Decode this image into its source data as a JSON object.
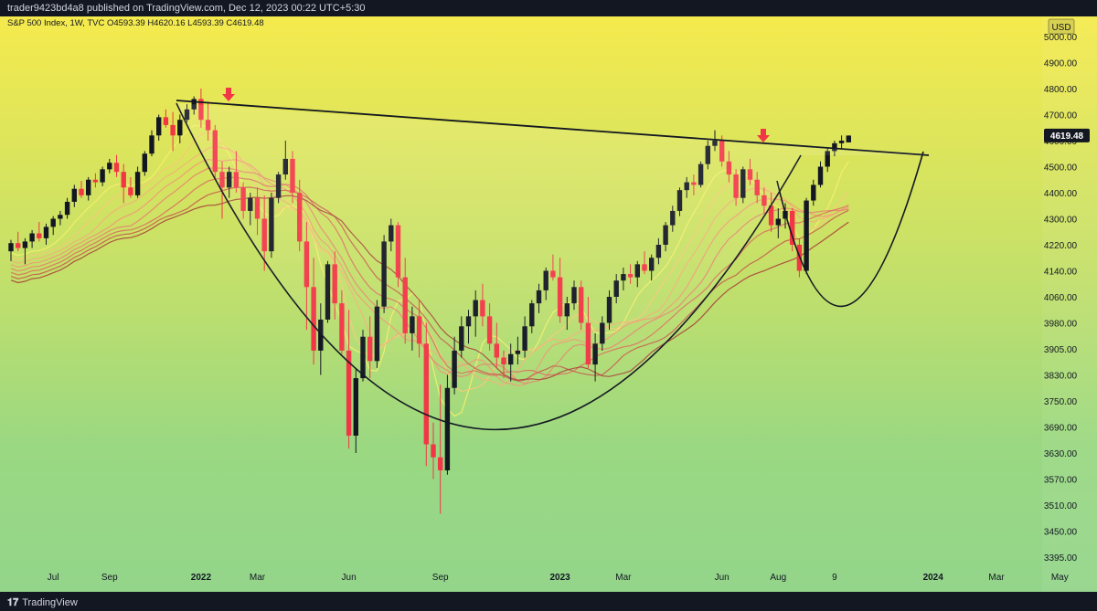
{
  "header": {
    "publisher_line": "trader9423bd4a8 published on TradingView.com, Dec 12, 2023 00:22 UTC+5:30"
  },
  "footer": {
    "brand_label": "TradingView",
    "brand_icon": "tradingview-logo-icon"
  },
  "colors": {
    "bull": "#131722",
    "bear": "#f23645",
    "trendline": "#131722",
    "arrow": "#f23645",
    "price_badge_bg": "#131722",
    "price_badge_text": "#ffffff",
    "bg_top": "#f5ea4d",
    "bg_mid": "#a8dc7c",
    "bg_bottom": "#93d58a"
  },
  "chart_data": {
    "type": "candlestick",
    "instrument_legend": "S&P 500 Index, 1W, TVC  O4593.39  H4620.16  L4593.39  C4619.48",
    "currency": "USD",
    "last_price_label": "4619.48",
    "last_price": 4619.48,
    "y_ticks": [
      5000,
      4900,
      4800,
      4700,
      4600,
      4500,
      4400,
      4300,
      4220,
      4140,
      4060,
      3980,
      3905,
      3830,
      3750,
      3690,
      3630,
      3570,
      3510,
      3450,
      3395
    ],
    "y_tick_labels": [
      "5000.00",
      "4900.00",
      "4800.00",
      "4700.00",
      "4600.00",
      "4500.00",
      "4400.00",
      "4300.00",
      "4220.00",
      "4140.00",
      "4060.00",
      "3980.00",
      "3905.00",
      "3830.00",
      "3750.00",
      "3690.00",
      "3630.00",
      "3570.00",
      "3510.00",
      "3450.00",
      "3395.00"
    ],
    "x_labels": [
      {
        "label": "Jul",
        "bar": 6
      },
      {
        "label": "Sep",
        "bar": 14
      },
      {
        "label": "2022",
        "bar": 27
      },
      {
        "label": "Mar",
        "bar": 35
      },
      {
        "label": "Jun",
        "bar": 48
      },
      {
        "label": "Sep",
        "bar": 61
      },
      {
        "label": "2023",
        "bar": 78
      },
      {
        "label": "Mar",
        "bar": 87
      },
      {
        "label": "Jun",
        "bar": 101
      },
      {
        "label": "Aug",
        "bar": 109
      },
      {
        "label": "9",
        "bar": 117
      },
      {
        "label": "2024",
        "bar": 131
      },
      {
        "label": "Mar",
        "bar": 140
      },
      {
        "label": "May",
        "bar": 149
      }
    ],
    "candles": [
      [
        4200,
        4235,
        4170,
        4225
      ],
      [
        4225,
        4260,
        4200,
        4210
      ],
      [
        4210,
        4240,
        4160,
        4230
      ],
      [
        4230,
        4265,
        4210,
        4255
      ],
      [
        4255,
        4290,
        4230,
        4240
      ],
      [
        4240,
        4285,
        4220,
        4275
      ],
      [
        4275,
        4310,
        4250,
        4300
      ],
      [
        4300,
        4330,
        4280,
        4315
      ],
      [
        4315,
        4380,
        4300,
        4365
      ],
      [
        4365,
        4430,
        4345,
        4415
      ],
      [
        4415,
        4445,
        4380,
        4390
      ],
      [
        4390,
        4460,
        4370,
        4450
      ],
      [
        4450,
        4475,
        4420,
        4440
      ],
      [
        4440,
        4500,
        4425,
        4490
      ],
      [
        4490,
        4530,
        4475,
        4515
      ],
      [
        4515,
        4545,
        4460,
        4480
      ],
      [
        4480,
        4510,
        4360,
        4420
      ],
      [
        4420,
        4460,
        4380,
        4390
      ],
      [
        4390,
        4500,
        4380,
        4480
      ],
      [
        4480,
        4560,
        4465,
        4550
      ],
      [
        4550,
        4640,
        4540,
        4620
      ],
      [
        4620,
        4700,
        4600,
        4690
      ],
      [
        4690,
        4720,
        4650,
        4660
      ],
      [
        4660,
        4710,
        4560,
        4620
      ],
      [
        4620,
        4700,
        4590,
        4680
      ],
      [
        4680,
        4740,
        4670,
        4720
      ],
      [
        4720,
        4770,
        4700,
        4760
      ],
      [
        4760,
        4800,
        4650,
        4680
      ],
      [
        4680,
        4750,
        4600,
        4640
      ],
      [
        4640,
        4660,
        4450,
        4480
      ],
      [
        4480,
        4520,
        4300,
        4420
      ],
      [
        4420,
        4500,
        4380,
        4480
      ],
      [
        4480,
        4560,
        4400,
        4420
      ],
      [
        4420,
        4440,
        4300,
        4330
      ],
      [
        4330,
        4400,
        4280,
        4380
      ],
      [
        4380,
        4420,
        4250,
        4300
      ],
      [
        4300,
        4390,
        4140,
        4200
      ],
      [
        4200,
        4400,
        4180,
        4380
      ],
      [
        4380,
        4480,
        4360,
        4470
      ],
      [
        4470,
        4600,
        4450,
        4530
      ],
      [
        4530,
        4560,
        4360,
        4400
      ],
      [
        4400,
        4450,
        4200,
        4230
      ],
      [
        4230,
        4290,
        3960,
        4090
      ],
      [
        4090,
        4180,
        3860,
        3900
      ],
      [
        3900,
        4040,
        3830,
        3990
      ],
      [
        3990,
        4170,
        3980,
        4160
      ],
      [
        4160,
        4200,
        3990,
        4040
      ],
      [
        4040,
        4080,
        3890,
        3900
      ],
      [
        3900,
        4020,
        3640,
        3670
      ],
      [
        3670,
        3850,
        3630,
        3820
      ],
      [
        3820,
        3960,
        3810,
        3940
      ],
      [
        3940,
        4000,
        3820,
        3870
      ],
      [
        3870,
        4050,
        3850,
        4030
      ],
      [
        4030,
        4250,
        4010,
        4230
      ],
      [
        4230,
        4300,
        4200,
        4280
      ],
      [
        4280,
        4290,
        4090,
        4120
      ],
      [
        4120,
        4180,
        3920,
        3950
      ],
      [
        3950,
        4030,
        3900,
        4000
      ],
      [
        4000,
        4050,
        3880,
        3920
      ],
      [
        3920,
        3980,
        3600,
        3650
      ],
      [
        3650,
        3700,
        3570,
        3620
      ],
      [
        3620,
        3800,
        3490,
        3590
      ],
      [
        3590,
        3830,
        3580,
        3790
      ],
      [
        3790,
        3940,
        3770,
        3900
      ],
      [
        3900,
        4000,
        3880,
        3970
      ],
      [
        3970,
        4020,
        3920,
        4000
      ],
      [
        4000,
        4080,
        3940,
        4050
      ],
      [
        4050,
        4100,
        3970,
        4000
      ],
      [
        4000,
        4040,
        3900,
        3920
      ],
      [
        3920,
        3980,
        3850,
        3880
      ],
      [
        3880,
        3900,
        3820,
        3860
      ],
      [
        3860,
        3920,
        3810,
        3890
      ],
      [
        3890,
        3940,
        3860,
        3900
      ],
      [
        3900,
        4000,
        3880,
        3970
      ],
      [
        3970,
        4050,
        3950,
        4040
      ],
      [
        4040,
        4100,
        4010,
        4080
      ],
      [
        4080,
        4150,
        4050,
        4140
      ],
      [
        4140,
        4190,
        4110,
        4120
      ],
      [
        4120,
        4180,
        3980,
        4000
      ],
      [
        4000,
        4060,
        3960,
        4040
      ],
      [
        4040,
        4110,
        4020,
        4090
      ],
      [
        4090,
        4110,
        3960,
        3980
      ],
      [
        3980,
        4060,
        3850,
        3860
      ],
      [
        3860,
        3950,
        3810,
        3920
      ],
      [
        3920,
        4000,
        3900,
        3980
      ],
      [
        3980,
        4080,
        3960,
        4060
      ],
      [
        4060,
        4130,
        4040,
        4110
      ],
      [
        4110,
        4150,
        4080,
        4130
      ],
      [
        4130,
        4160,
        4100,
        4120
      ],
      [
        4120,
        4170,
        4090,
        4160
      ],
      [
        4160,
        4200,
        4130,
        4140
      ],
      [
        4140,
        4190,
        4110,
        4180
      ],
      [
        4180,
        4240,
        4160,
        4220
      ],
      [
        4220,
        4290,
        4200,
        4280
      ],
      [
        4280,
        4350,
        4260,
        4330
      ],
      [
        4330,
        4420,
        4310,
        4410
      ],
      [
        4410,
        4460,
        4380,
        4440
      ],
      [
        4440,
        4470,
        4390,
        4430
      ],
      [
        4430,
        4520,
        4420,
        4510
      ],
      [
        4510,
        4600,
        4490,
        4580
      ],
      [
        4580,
        4640,
        4560,
        4600
      ],
      [
        4600,
        4620,
        4500,
        4520
      ],
      [
        4520,
        4560,
        4440,
        4470
      ],
      [
        4470,
        4490,
        4350,
        4380
      ],
      [
        4380,
        4500,
        4360,
        4490
      ],
      [
        4490,
        4530,
        4430,
        4450
      ],
      [
        4450,
        4480,
        4360,
        4390
      ],
      [
        4390,
        4420,
        4320,
        4350
      ],
      [
        4350,
        4400,
        4260,
        4280
      ],
      [
        4280,
        4340,
        4240,
        4300
      ],
      [
        4300,
        4360,
        4270,
        4330
      ],
      [
        4330,
        4340,
        4200,
        4220
      ],
      [
        4220,
        4240,
        4120,
        4140
      ],
      [
        4140,
        4380,
        4130,
        4370
      ],
      [
        4370,
        4450,
        4350,
        4430
      ],
      [
        4430,
        4520,
        4420,
        4500
      ],
      [
        4500,
        4570,
        4480,
        4560
      ],
      [
        4560,
        4600,
        4540,
        4590
      ],
      [
        4590,
        4620,
        4570,
        4600
      ],
      [
        4593.39,
        4620.16,
        4593.39,
        4619.48
      ]
    ]
  }
}
